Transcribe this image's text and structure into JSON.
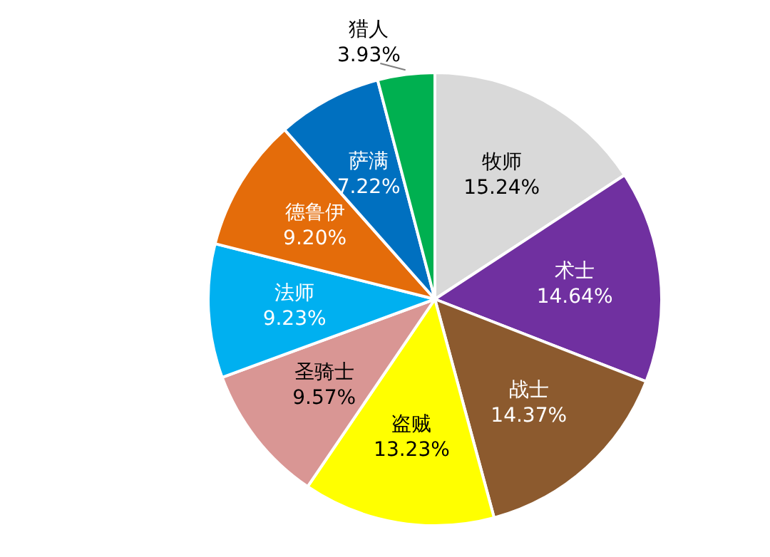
{
  "chart_data": {
    "type": "pie",
    "categories": [
      "牧师",
      "术士",
      "战士",
      "盗贼",
      "圣骑士",
      "法师",
      "德鲁伊",
      "萨满",
      "猎人"
    ],
    "values": [
      15.24,
      14.64,
      14.37,
      13.23,
      9.57,
      9.23,
      9.2,
      7.22,
      3.93
    ],
    "value_labels": [
      "15.24%",
      "14.64%",
      "14.37%",
      "13.23%",
      "9.57%",
      "9.23%",
      "9.20%",
      "7.22%",
      "3.93%"
    ],
    "colors": [
      "#d9d9d9",
      "#7030a0",
      "#8c5a2e",
      "#ffff00",
      "#d99694",
      "#00b0f0",
      "#e46c0a",
      "#0070c0",
      "#00b050"
    ],
    "legend": false
  }
}
